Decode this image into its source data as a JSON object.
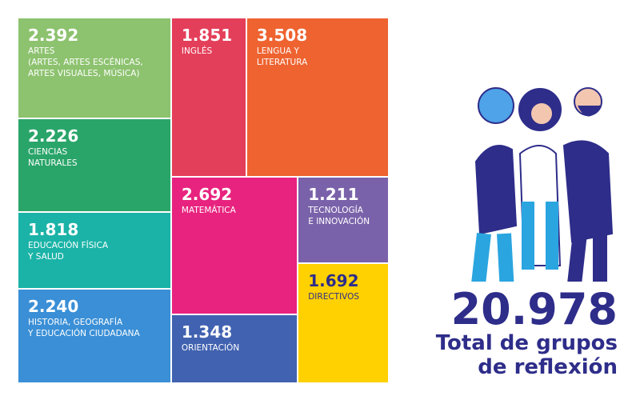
{
  "chart_data": {
    "type": "treemap",
    "categories": [
      "ARTES\n(ARTES, ARTES ESCÉNICAS,\nARTES VISUALES, MÚSICA)",
      "CIENCIAS\nNATURALES",
      "EDUCACIÓN FÍSICA\nY SALUD",
      "HISTORIA, GEOGRAFÍA\nY EDUCACIÓN CIUDADANA",
      "INGLÉS",
      "LENGUA Y\nLITERATURA",
      "MATEMÁTICA",
      "ORIENTACIÓN",
      "TECNOLOGÍA\nE INNOVACIÓN",
      "DIRECTIVOS"
    ],
    "values": [
      2392,
      2226,
      1818,
      2240,
      1851,
      3508,
      2692,
      1348,
      1211,
      1692
    ],
    "value_labels": [
      "2.392",
      "2.226",
      "1.818",
      "2.240",
      "1.851",
      "3.508",
      "2.692",
      "1.348",
      "1.211",
      "1.692"
    ],
    "colors": [
      "#8dc26f",
      "#2aa56a",
      "#1bb3a7",
      "#3a8fd6",
      "#e43f5a",
      "#ee6330",
      "#e8237f",
      "#4162b0",
      "#7a62aa",
      "#ffd100"
    ],
    "label_colors": [
      "#ffffff",
      "#ffffff",
      "#ffffff",
      "#ffffff",
      "#ffffff",
      "#ffffff",
      "#ffffff",
      "#ffffff",
      "#ffffff",
      "#2e2d8a"
    ],
    "total_label": "20.978",
    "total_caption": "Total de grupos\nde reflexión"
  }
}
